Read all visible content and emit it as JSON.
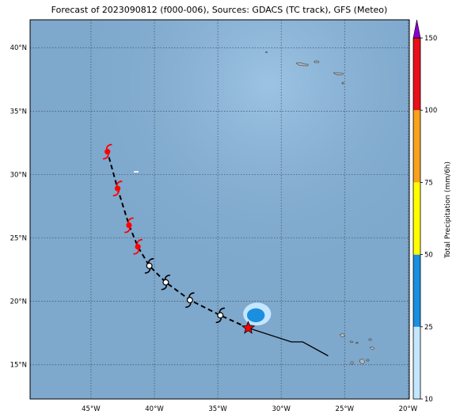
{
  "title": "Forecast of 2023090812 (f000-006), Sources: GDACS (TC track), GFS (Meteo)",
  "map": {
    "lon_range": [
      -49.8,
      -19.9
    ],
    "lat_range": [
      12.3,
      42.2
    ],
    "ocean_color": "#7ea8cc",
    "land_color": "#b8b8b8",
    "gridlines": "dotted",
    "lon_ticks": [
      {
        "lon": -45,
        "label": "45°W"
      },
      {
        "lon": -40,
        "label": "40°W"
      },
      {
        "lon": -35,
        "label": "35°W"
      },
      {
        "lon": -30,
        "label": "30°W"
      },
      {
        "lon": -25,
        "label": "25°W"
      },
      {
        "lon": -20,
        "label": "20°W"
      }
    ],
    "lat_ticks": [
      {
        "lat": 40,
        "label": "40°N"
      },
      {
        "lat": 35,
        "label": "35°N"
      },
      {
        "lat": 30,
        "label": "30°N"
      },
      {
        "lat": 25,
        "label": "25°N"
      },
      {
        "lat": 20,
        "label": "20°N"
      },
      {
        "lat": 15,
        "label": "15°N"
      }
    ],
    "past_track": [
      {
        "lon": -26.3,
        "lat": 15.7
      },
      {
        "lon": -28.3,
        "lat": 16.8
      },
      {
        "lon": -29.2,
        "lat": 16.8
      },
      {
        "lon": -32.6,
        "lat": 17.9
      }
    ],
    "current_position": {
      "lon": -32.6,
      "lat": 17.9,
      "marker": "red-star"
    },
    "forecast_track": [
      {
        "lon": -32.6,
        "lat": 17.9,
        "category": "start"
      },
      {
        "lon": -34.8,
        "lat": 18.9,
        "category": "storm"
      },
      {
        "lon": -37.2,
        "lat": 20.1,
        "category": "storm"
      },
      {
        "lon": -39.1,
        "lat": 21.5,
        "category": "storm"
      },
      {
        "lon": -40.4,
        "lat": 22.8,
        "category": "storm"
      },
      {
        "lon": -41.3,
        "lat": 24.3,
        "category": "hurricane"
      },
      {
        "lon": -42.0,
        "lat": 26.0,
        "category": "hurricane"
      },
      {
        "lon": -42.9,
        "lat": 28.9,
        "category": "hurricane"
      },
      {
        "lon": -43.7,
        "lat": 31.8,
        "category": "hurricane"
      }
    ],
    "marker_colors": {
      "storm": "#ffffff",
      "hurricane": "#ff0000",
      "track": "#000000",
      "star": "#ff0000"
    },
    "precip_blobs": [
      {
        "lon": -31.9,
        "lat": 19.0,
        "rx_deg": 1.1,
        "ry_deg": 0.9,
        "value": 20
      },
      {
        "lon": -32.0,
        "lat": 18.9,
        "rx_deg": 0.7,
        "ry_deg": 0.55,
        "value": 35
      }
    ]
  },
  "colorbar": {
    "label": "Total Precipitation (mm/6h)",
    "min": 10,
    "max": 150,
    "ticks": [
      10,
      25,
      50,
      75,
      100,
      150
    ],
    "bins": [
      {
        "from": 10,
        "to": 25,
        "color": "#c4e6ff"
      },
      {
        "from": 25,
        "to": 50,
        "color": "#1a8fe0"
      },
      {
        "from": 50,
        "to": 75,
        "color": "#ffff00"
      },
      {
        "from": 75,
        "to": 100,
        "color": "#f7a21c"
      },
      {
        "from": 100,
        "to": 150,
        "color": "#e8101a"
      }
    ],
    "extend_color": "#8b00cc"
  }
}
